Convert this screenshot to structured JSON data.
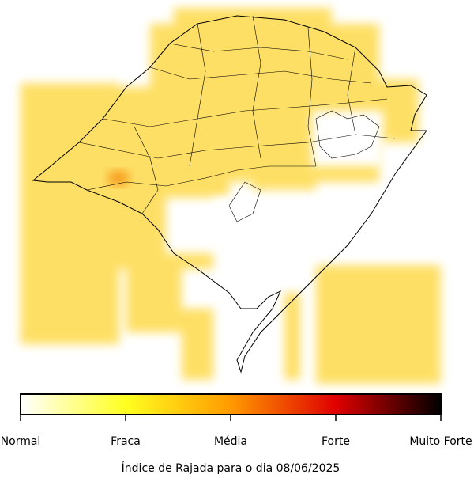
{
  "colorbar": {
    "labels": [
      "Normal",
      "Fraca",
      "Média",
      "Forte",
      "Muito Forte"
    ]
  },
  "caption": "Índice de Rajada para o dia 08/06/2025"
}
